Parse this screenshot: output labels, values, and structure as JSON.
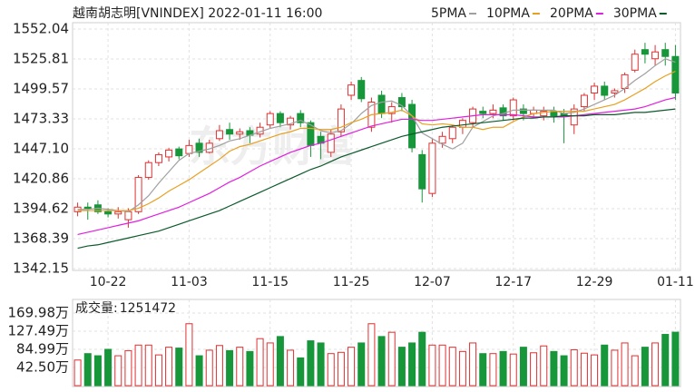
{
  "chart_data": [
    {
      "type": "candlestick",
      "title": "越南胡志明[VNINDEX] 2022-01-11 16:00",
      "watermark": "东方财富",
      "categories": [
        null,
        null,
        null,
        "10-22",
        null,
        null,
        null,
        null,
        null,
        null,
        null,
        "11-03",
        null,
        null,
        null,
        null,
        null,
        null,
        null,
        "11-15",
        null,
        null,
        null,
        null,
        null,
        null,
        null,
        "11-25",
        null,
        null,
        null,
        null,
        null,
        null,
        null,
        "12-07",
        null,
        null,
        null,
        null,
        null,
        null,
        null,
        "12-17",
        null,
        null,
        null,
        null,
        null,
        null,
        null,
        "12-29",
        null,
        null,
        null,
        null,
        null,
        null,
        null,
        "01-11"
      ],
      "open": [
        1392,
        1396,
        1398,
        1392,
        1390,
        1385,
        1392,
        1422,
        1435,
        1440,
        1447,
        1443,
        1452,
        1444,
        1456,
        1464,
        1460,
        1463,
        1460,
        1468,
        1478,
        1468,
        1478,
        1470,
        1458,
        1444,
        1462,
        1494,
        1507,
        1466,
        1494,
        1478,
        1492,
        1486,
        1442,
        1408,
        1452,
        1456,
        1466,
        1470,
        1480,
        1478,
        1483,
        1476,
        1482,
        1478,
        1476,
        1480,
        1478,
        1468,
        1484,
        1496,
        1502,
        1496,
        1500,
        1516,
        1534,
        1526,
        1534,
        1528
      ],
      "high": [
        1400,
        1400,
        1402,
        1395,
        1396,
        1395,
        1424,
        1437,
        1444,
        1448,
        1449,
        1455,
        1456,
        1455,
        1468,
        1470,
        1465,
        1466,
        1470,
        1480,
        1480,
        1476,
        1481,
        1472,
        1462,
        1464,
        1486,
        1506,
        1510,
        1492,
        1498,
        1488,
        1496,
        1490,
        1446,
        1456,
        1462,
        1468,
        1474,
        1484,
        1484,
        1486,
        1486,
        1492,
        1486,
        1484,
        1484,
        1484,
        1482,
        1486,
        1496,
        1505,
        1506,
        1500,
        1514,
        1534,
        1540,
        1538,
        1540,
        1538
      ],
      "low": [
        1388,
        1385,
        1390,
        1387,
        1386,
        1378,
        1390,
        1420,
        1432,
        1436,
        1438,
        1440,
        1440,
        1443,
        1454,
        1455,
        1455,
        1452,
        1457,
        1465,
        1466,
        1464,
        1466,
        1440,
        1438,
        1440,
        1458,
        1490,
        1488,
        1462,
        1474,
        1470,
        1480,
        1444,
        1400,
        1405,
        1448,
        1452,
        1460,
        1466,
        1474,
        1474,
        1472,
        1472,
        1472,
        1474,
        1472,
        1470,
        1452,
        1460,
        1480,
        1490,
        1490,
        1492,
        1496,
        1514,
        1522,
        1520,
        1520,
        1490
      ],
      "close": [
        1396,
        1395,
        1392,
        1390,
        1392,
        1392,
        1422,
        1435,
        1442,
        1446,
        1441,
        1450,
        1444,
        1452,
        1463,
        1460,
        1462,
        1459,
        1466,
        1478,
        1470,
        1474,
        1470,
        1450,
        1452,
        1460,
        1482,
        1503,
        1491,
        1488,
        1478,
        1484,
        1484,
        1448,
        1412,
        1452,
        1458,
        1466,
        1472,
        1482,
        1478,
        1481,
        1476,
        1490,
        1478,
        1481,
        1480,
        1476,
        1476,
        1482,
        1494,
        1502,
        1494,
        1498,
        1512,
        1530,
        1530,
        1532,
        1528,
        1496
      ],
      "up_color": "#e03030",
      "down_color": "#17963a",
      "series": [
        {
          "name": "5PMA",
          "color": "#a0a0a0",
          "values": [
            1394,
            1394,
            1395,
            1394,
            1393,
            1392,
            1398,
            1406,
            1417,
            1427,
            1437,
            1443,
            1445,
            1447,
            1450,
            1454,
            1456,
            1459,
            1462,
            1465,
            1467,
            1469,
            1472,
            1468,
            1463,
            1461,
            1463,
            1469,
            1478,
            1485,
            1488,
            1489,
            1485,
            1476,
            1461,
            1456,
            1451,
            1447,
            1452,
            1466,
            1471,
            1476,
            1478,
            1481,
            1481,
            1481,
            1481,
            1481,
            1478,
            1479,
            1482,
            1486,
            1490,
            1494,
            1500,
            1507,
            1513,
            1520,
            1526,
            1523
          ]
        },
        {
          "name": "10PMA",
          "color": "#e8a020",
          "values": [
            1393,
            1393,
            1393,
            1393,
            1393,
            1393,
            1395,
            1399,
            1404,
            1410,
            1415,
            1420,
            1426,
            1432,
            1438,
            1445,
            1449,
            1451,
            1454,
            1457,
            1460,
            1462,
            1465,
            1465,
            1464,
            1464,
            1466,
            1470,
            1473,
            1477,
            1478,
            1479,
            1481,
            1476,
            1469,
            1468,
            1469,
            1468,
            1466,
            1466,
            1464,
            1466,
            1466,
            1471,
            1475,
            1478,
            1479,
            1480,
            1480,
            1480,
            1480,
            1482,
            1484,
            1486,
            1490,
            1495,
            1500,
            1506,
            1511,
            1515
          ]
        },
        {
          "name": "20PMA",
          "color": "#e020e0",
          "values": [
            1372,
            1374,
            1376,
            1378,
            1380,
            1382,
            1384,
            1387,
            1390,
            1393,
            1396,
            1400,
            1404,
            1408,
            1413,
            1418,
            1422,
            1427,
            1432,
            1436,
            1440,
            1444,
            1447,
            1450,
            1452,
            1455,
            1458,
            1461,
            1464,
            1467,
            1469,
            1471,
            1473,
            1473,
            1472,
            1472,
            1473,
            1474,
            1475,
            1476,
            1477,
            1477,
            1477,
            1477,
            1476,
            1475,
            1475,
            1475,
            1475,
            1476,
            1477,
            1478,
            1479,
            1480,
            1481,
            1482,
            1484,
            1487,
            1490,
            1492
          ]
        },
        {
          "name": "30PMA",
          "color": "#0a5a2a",
          "values": [
            1360,
            1362,
            1363,
            1365,
            1367,
            1369,
            1371,
            1373,
            1375,
            1378,
            1381,
            1384,
            1387,
            1390,
            1393,
            1397,
            1401,
            1405,
            1409,
            1413,
            1417,
            1421,
            1425,
            1429,
            1432,
            1436,
            1440,
            1443,
            1446,
            1449,
            1452,
            1455,
            1458,
            1460,
            1462,
            1464,
            1466,
            1467,
            1468,
            1469,
            1470,
            1471,
            1472,
            1473,
            1474,
            1474,
            1475,
            1475,
            1476,
            1476,
            1476,
            1477,
            1477,
            1477,
            1478,
            1479,
            1479,
            1480,
            1481,
            1482
          ]
        }
      ],
      "ylim": [
        1342.15,
        1552.04
      ],
      "yticks": [
        1552.04,
        1525.81,
        1499.57,
        1473.33,
        {
          "value": 1447.1,
          "label": "1447.10"
        },
        1420.86,
        1394.62,
        1368.39,
        1342.15
      ],
      "grid": true,
      "legend": "top-right"
    },
    {
      "type": "bar",
      "title": "成交量:",
      "values": [
        600000,
        750000,
        700000,
        850000,
        700000,
        820000,
        950000,
        950000,
        720000,
        900000,
        880000,
        1450000,
        700000,
        830000,
        940000,
        820000,
        900000,
        800000,
        1100000,
        1000000,
        1150000,
        830000,
        650000,
        1050000,
        1000000,
        750000,
        780000,
        900000,
        1000000,
        1450000,
        1150000,
        1250000,
        900000,
        1000000,
        1250000,
        950000,
        950000,
        900000,
        800000,
        1000000,
        750000,
        750000,
        800000,
        740000,
        900000,
        770000,
        930000,
        800000,
        700000,
        840000,
        760000,
        720000,
        950000,
        830000,
        1000000,
        700000,
        900000,
        1000000,
        1200000,
        1251472
      ],
      "ylim": [
        0,
        1699800
      ],
      "yticks": [
        {
          "value": 1699800,
          "label": "169.98万"
        },
        {
          "value": 1274900,
          "label": "127.49万"
        },
        {
          "value": 849900,
          "label": "84.99万"
        },
        {
          "value": 425000,
          "label": "42.50万"
        }
      ]
    }
  ]
}
